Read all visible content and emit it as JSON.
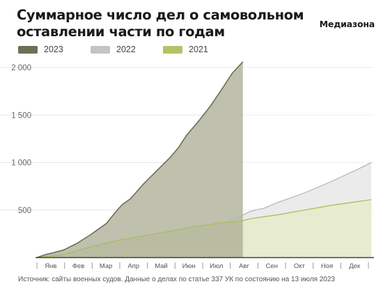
{
  "header": {
    "title": "Суммарное число дел о самовольном оставлении части по годам",
    "brand": "Медиазона"
  },
  "footer": {
    "source": "Источник: сайты военных судов. Данные о делах по статье 337 УК по состоянию на 13 июля 2023"
  },
  "chart_data": {
    "type": "area",
    "title": "Суммарное число дел о самовольном оставлении части по годам",
    "xlabel": "",
    "ylabel": "",
    "ylim": [
      0,
      2000
    ],
    "yticks": [
      500,
      1000,
      1500,
      2000
    ],
    "ytick_labels": [
      "500",
      "1 000",
      "1 500",
      "2 000"
    ],
    "xlim": [
      0,
      12.6
    ],
    "months": [
      "Янв",
      "Фев",
      "Мар",
      "Апр",
      "Май",
      "Июн",
      "Июл",
      "Авг",
      "Сен",
      "Окт",
      "Ноя",
      "Дек"
    ],
    "grid": true,
    "legend_placement": "top-left",
    "highlight_until": 7.7,
    "series": [
      {
        "name": "2023",
        "color": "#6b7152",
        "fill": "#b4b59f",
        "x": [
          0,
          0.3,
          0.6,
          1.0,
          1.5,
          2.0,
          2.3,
          2.6,
          3.0,
          3.2,
          3.5,
          4.0,
          4.5,
          5.0,
          5.3,
          5.6,
          6.0,
          6.5,
          7.0,
          7.3,
          7.7
        ],
        "values": [
          0,
          30,
          50,
          80,
          150,
          240,
          300,
          360,
          500,
          560,
          620,
          780,
          920,
          1060,
          1160,
          1290,
          1420,
          1600,
          1810,
          1940,
          2060
        ]
      },
      {
        "name": "2022",
        "color": "#b8b8b8",
        "fill": "#dfdfdf",
        "x": [
          0,
          1.0,
          2.0,
          3.0,
          4.0,
          5.0,
          6.0,
          7.0,
          7.5,
          8.0,
          8.5,
          9.0,
          10.0,
          11.0,
          12.0,
          12.5
        ],
        "values": [
          0,
          40,
          120,
          180,
          220,
          270,
          310,
          370,
          420,
          490,
          520,
          580,
          680,
          800,
          930,
          1000
        ]
      },
      {
        "name": "2021",
        "color": "#a8c056",
        "fill": "#d9e1b4",
        "x": [
          0,
          1.0,
          2.0,
          3.0,
          4.0,
          5.0,
          6.0,
          7.0,
          7.5,
          8.0,
          9.0,
          10.0,
          11.0,
          12.0,
          12.5
        ],
        "values": [
          0,
          30,
          110,
          180,
          230,
          280,
          330,
          370,
          375,
          410,
          450,
          500,
          550,
          590,
          610
        ]
      }
    ]
  }
}
